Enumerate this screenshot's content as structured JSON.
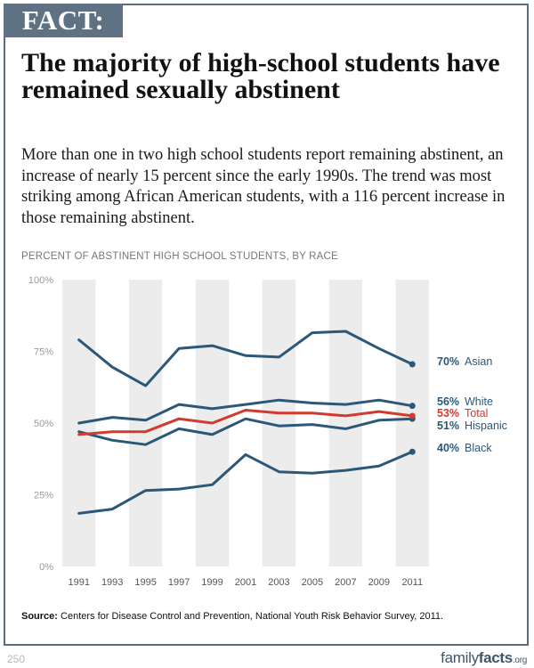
{
  "tag": "FACT:",
  "headline": "The majority of high-school students have remained sexually abstinent",
  "summary": "More than one in two high school students report remaining abstinent, an increase of nearly 15 percent since the early 1990s. The trend was most striking among African American students, with a 116 percent increase in those remaining abstinent.",
  "source_label": "Source:",
  "source_text": "Centers for Disease Control and Prevention, National Youth Risk Behavior Survey, 2011.",
  "page_number": "250",
  "brand": {
    "part1": "family",
    "part2": "facts",
    "part3": ".org"
  },
  "colors": {
    "series_line": "#2b5878",
    "total_line": "#d23a2e",
    "shade": "#ececec",
    "tag_bg": "#5e7283"
  },
  "chart_data": {
    "type": "line",
    "title": "PERCENT OF ABSTINENT HIGH SCHOOL STUDENTS, BY RACE",
    "x": [
      "1991",
      "1993",
      "1995",
      "1997",
      "1999",
      "2001",
      "2003",
      "2005",
      "2007",
      "2009",
      "2011"
    ],
    "ylim": [
      0,
      100
    ],
    "yticks": [
      "0%",
      "25%",
      "50%",
      "75%",
      "100%"
    ],
    "grid": false,
    "series": [
      {
        "name": "Asian",
        "end_label": "70%",
        "color": "#2b5878",
        "values": [
          79,
          69.5,
          63,
          76,
          77,
          73.5,
          73,
          81.5,
          82,
          76,
          70.5
        ]
      },
      {
        "name": "White",
        "end_label": "56%",
        "color": "#2b5878",
        "values": [
          50,
          52,
          51,
          56.5,
          55,
          56.5,
          58,
          57,
          56.5,
          58,
          56
        ]
      },
      {
        "name": "Total",
        "end_label": "53%",
        "color": "#d23a2e",
        "values": [
          46,
          47,
          47,
          51.5,
          50,
          54.5,
          53.5,
          53.5,
          52.5,
          54,
          52.5
        ]
      },
      {
        "name": "Hispanic",
        "end_label": "51%",
        "color": "#2b5878",
        "values": [
          47,
          44,
          42.5,
          48,
          46,
          51.5,
          49,
          49.5,
          48,
          51,
          51.5
        ]
      },
      {
        "name": "Black",
        "end_label": "40%",
        "color": "#2b5878",
        "values": [
          18.5,
          20,
          26.5,
          27,
          28.5,
          39,
          33,
          32.5,
          33.5,
          35,
          40
        ]
      }
    ]
  }
}
